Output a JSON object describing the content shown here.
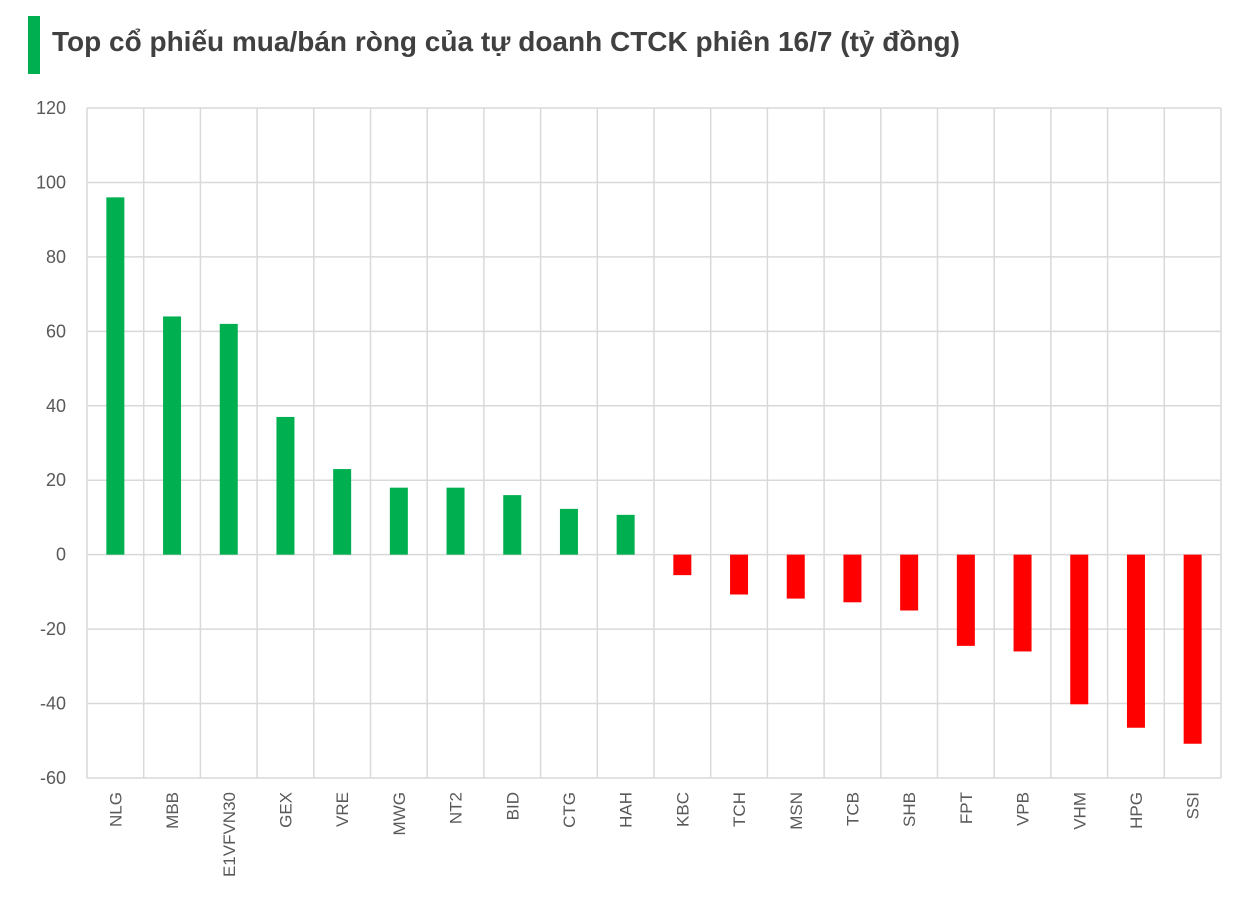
{
  "chart_data": {
    "type": "bar",
    "title": "Top cổ phiếu mua/bán ròng của tự doanh CTCK phiên 16/7 (tỷ đồng)",
    "xlabel": "",
    "ylabel": "",
    "ylim": [
      -60,
      120
    ],
    "yticks": [
      "120",
      "100",
      "80",
      "60",
      "40",
      "20",
      "0",
      "-20",
      "-40",
      "-60"
    ],
    "categories": [
      "NLG",
      "MBB",
      "E1VFVN30",
      "GEX",
      "VRE",
      "MWG",
      "NT2",
      "BID",
      "CTG",
      "HAH",
      "KBC",
      "TCH",
      "MSN",
      "TCB",
      "SHB",
      "FPT",
      "VPB",
      "VHM",
      "HPG",
      "SSI"
    ],
    "values": [
      96,
      64,
      62,
      37,
      23,
      18,
      18,
      16,
      12.3,
      10.7,
      -5.5,
      -10.7,
      -11.8,
      -12.8,
      -15,
      -24.5,
      -26,
      -40.2,
      -46.5,
      -50.8
    ],
    "grid": true,
    "legend": "none",
    "colors": {
      "positive": "#00b050",
      "negative": "#ff0000",
      "title_accent": "#00b050",
      "grid": "#d9d9d9",
      "text": "#595959",
      "title_text": "#404040"
    }
  }
}
